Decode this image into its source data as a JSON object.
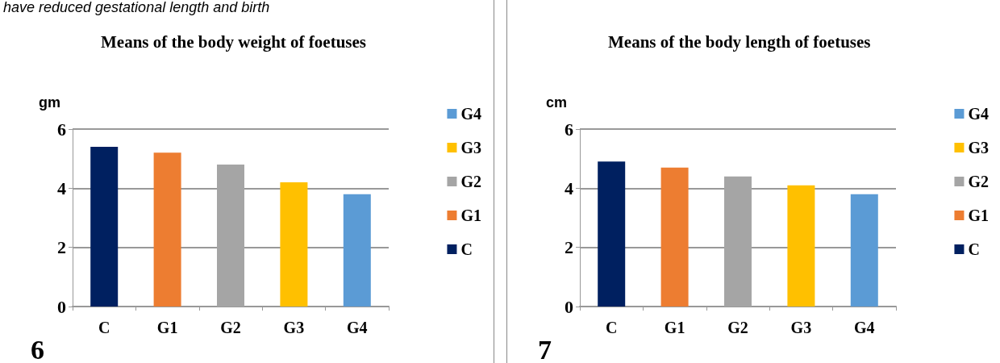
{
  "chart_data": [
    {
      "type": "bar",
      "title": "Means of the body weight of foetuses",
      "ylabel": "gm",
      "annotations": [
        "have reduced gestational length and birth",
        "6"
      ],
      "categories": [
        "C",
        "G1",
        "G2",
        "G3",
        "G4"
      ],
      "series": [
        {
          "name": "C",
          "color": "#002060",
          "values": [
            5.4,
            null,
            null,
            null,
            null
          ]
        },
        {
          "name": "G1",
          "color": "#ed7d31",
          "values": [
            null,
            5.2,
            null,
            null,
            null
          ]
        },
        {
          "name": "G2",
          "color": "#a5a5a5",
          "values": [
            null,
            null,
            4.8,
            null,
            null
          ]
        },
        {
          "name": "G3",
          "color": "#ffc000",
          "values": [
            null,
            null,
            null,
            4.2,
            null
          ]
        },
        {
          "name": "G4",
          "color": "#5b9bd5",
          "values": [
            null,
            null,
            null,
            null,
            3.8
          ]
        }
      ],
      "ylim": [
        0,
        6
      ],
      "yticks": [
        0,
        2,
        4,
        6
      ],
      "grid": "y",
      "legend": "right"
    },
    {
      "type": "bar",
      "title": "Means of the body length of foetuses",
      "ylabel": "cm",
      "annotations": [
        "7"
      ],
      "categories": [
        "C",
        "G1",
        "G2",
        "G3",
        "G4"
      ],
      "series": [
        {
          "name": "C",
          "color": "#002060",
          "values": [
            4.9,
            null,
            null,
            null,
            null
          ]
        },
        {
          "name": "G1",
          "color": "#ed7d31",
          "values": [
            null,
            4.7,
            null,
            null,
            null
          ]
        },
        {
          "name": "G2",
          "color": "#a5a5a5",
          "values": [
            null,
            null,
            4.4,
            null,
            null
          ]
        },
        {
          "name": "G3",
          "color": "#ffc000",
          "values": [
            null,
            null,
            null,
            4.1,
            null
          ]
        },
        {
          "name": "G4",
          "color": "#5b9bd5",
          "values": [
            null,
            null,
            null,
            null,
            3.8
          ]
        }
      ],
      "ylim": [
        0,
        6
      ],
      "yticks": [
        0,
        2,
        4,
        6
      ],
      "grid": "y",
      "legend": "right"
    }
  ]
}
